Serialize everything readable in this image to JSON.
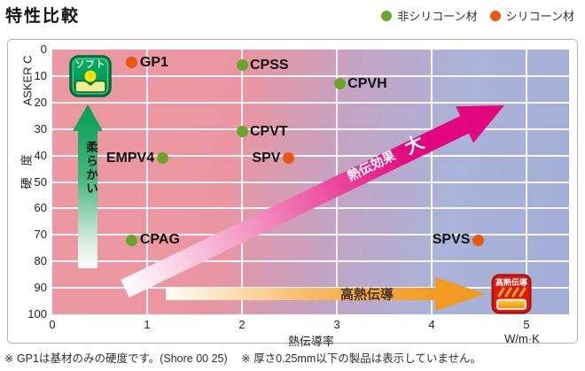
{
  "title": "特性比較",
  "legend": [
    {
      "label": "非シリコーン材",
      "color": "#69a72b"
    },
    {
      "label": "シリコーン材",
      "color": "#e8590d"
    }
  ],
  "chart_data": {
    "type": "scatter",
    "title": "特性比較",
    "xlabel": "熱伝導率",
    "x_unit": "W/m·K",
    "ylabel_top": "ASKER C",
    "ylabel_side": "硬　度",
    "xlim": [
      0,
      5.45
    ],
    "ylim": [
      0,
      100
    ],
    "y_axis_direction": "0 at top, 100 at bottom (hardness)",
    "grid": true,
    "x_ticks": [
      0,
      1,
      2,
      3,
      4,
      5
    ],
    "y_ticks": [
      0,
      10,
      20,
      30,
      40,
      50,
      60,
      70,
      80,
      90,
      100
    ],
    "series": [
      {
        "name": "非シリコーン材",
        "color": "#69a72b",
        "points": [
          {
            "label": "CPSS",
            "x": 2.0,
            "y": 6,
            "label_side": "right"
          },
          {
            "label": "CPVH",
            "x": 3.03,
            "y": 13,
            "label_side": "right"
          },
          {
            "label": "CPVT",
            "x": 2.0,
            "y": 31,
            "label_side": "right"
          },
          {
            "label": "EMPV4",
            "x": 1.16,
            "y": 41,
            "label_side": "left"
          },
          {
            "label": "CPAG",
            "x": 0.84,
            "y": 72,
            "label_side": "right"
          }
        ]
      },
      {
        "name": "シリコーン材",
        "color": "#e8590d",
        "points": [
          {
            "label": "GP1",
            "x": 0.84,
            "y": 5,
            "label_side": "right"
          },
          {
            "label": "SPV",
            "x": 2.49,
            "y": 41,
            "label_side": "left"
          },
          {
            "label": "SPVS",
            "x": 4.49,
            "y": 72,
            "label_side": "left"
          }
        ]
      }
    ],
    "annotations": {
      "soft_vertical_arrow_text": "柔らかい",
      "soft_badge_text": "ソフト",
      "heat_effect_arrow_text": "熱伝効果",
      "heat_effect_arrow_text_big": "大",
      "high_conduction_arrow_text": "高熱伝導",
      "high_conduction_badge_text": "高熱伝導"
    },
    "legend_position": "top-right"
  },
  "colors": {
    "plot_bg_left": "#ec98a0",
    "plot_bg_right": "#a8b2d8",
    "non_silicone_dot": "#69a72b",
    "silicone_dot": "#e8590d",
    "soft_arrow_green": "#009e57",
    "heat_arrow_pink": "#e4067f",
    "conduction_arrow_orange": "#f29a22",
    "soft_badge_green": "#00a257",
    "high_conduction_badge_red": "#e2180f"
  },
  "footnotes": [
    "※ GP1は基材のみの硬度です。(Shore 00 25)",
    "※ 厚さ0.25mm以下の製品は表示していません。"
  ]
}
